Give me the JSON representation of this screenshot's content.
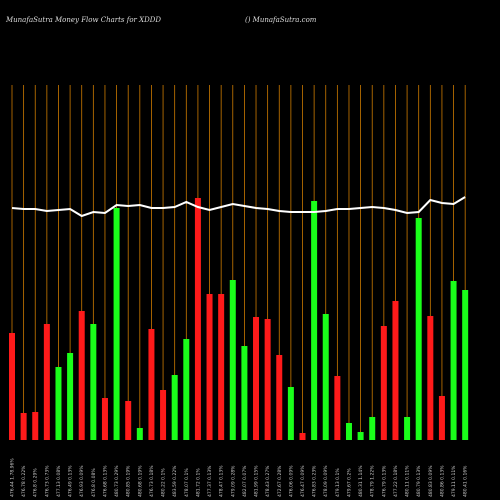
{
  "chart_data": {
    "type": "bar",
    "title": "MunafaSutra  Money Flow  Charts for XDDD",
    "subtitle": "() MunafaSutra.com",
    "categories": [
      "476.44 1.78.96%",
      "476.78 0.22%",
      "476.8 0.29%",
      "476.73 0.73%",
      "477.13 0.08%",
      "476.49 0.13%",
      "476.93 0.09%",
      "476.8 0.08%",
      "476.68 0.13%",
      "480.73 0.29%",
      "480.85 0.19%",
      "480.68 0.19%",
      "476.73 0.18%",
      "480.22 0.1%",
      "483.59 0.22%",
      "478.07 0.1%",
      "481.72 0.1%",
      "477.37 0.13%",
      "478.47 0.13%",
      "479.09 0.28%",
      "482.07 0.07%",
      "481.99 0.15%",
      "478.43 0.27%",
      "472.67 0.28%",
      "476.06 0.09%",
      "476.47 0.09%",
      "476.83 0.23%",
      "478.09 0.09%",
      "479.13 0.1%",
      "479.67 0.2%",
      "480.31 1.14%",
      "478.79 1.22%",
      "476.79 0.13%",
      "477.22 0.18%",
      "480.11 0.11%",
      "480.79 0.13%",
      "480.83 0.09%",
      "480.86 0.13%",
      "479.11 0.11%",
      "480.41 0.16%"
    ],
    "series": [
      {
        "name": "Money Flow",
        "values": [
          107,
          27,
          28,
          116,
          73,
          87,
          129,
          116,
          42,
          232,
          39,
          12,
          111,
          50,
          65,
          101,
          242,
          146,
          146,
          160,
          94,
          123,
          121,
          85,
          53,
          7,
          239,
          126,
          64,
          17,
          8,
          23,
          114,
          139,
          23,
          222,
          124,
          44,
          159,
          150
        ],
        "colors": [
          "#ff1a1a",
          "#ff1a1a",
          "#ff1a1a",
          "#ff1a1a",
          "#1aff1a",
          "#1aff1a",
          "#ff1a1a",
          "#1aff1a",
          "#ff1a1a",
          "#1aff1a",
          "#ff1a1a",
          "#1aff1a",
          "#ff1a1a",
          "#ff1a1a",
          "#1aff1a",
          "#1aff1a",
          "#ff1a1a",
          "#ff1a1a",
          "#ff1a1a",
          "#1aff1a",
          "#1aff1a",
          "#ff1a1a",
          "#ff1a1a",
          "#ff1a1a",
          "#1aff1a",
          "#ff1a1a",
          "#1aff1a",
          "#1aff1a",
          "#ff1a1a",
          "#1aff1a",
          "#1aff1a",
          "#1aff1a",
          "#ff1a1a",
          "#ff1a1a",
          "#1aff1a",
          "#1aff1a",
          "#ff1a1a",
          "#ff1a1a",
          "#1aff1a",
          "#1aff1a"
        ]
      },
      {
        "name": "Price",
        "type": "line",
        "color": "#ffffff",
        "values": [
          232,
          231,
          231,
          229,
          230,
          231,
          224,
          228,
          227,
          235,
          234,
          235,
          232,
          232,
          233,
          238,
          233,
          230,
          233,
          236,
          234,
          232,
          231,
          229,
          228,
          228,
          228,
          229,
          231,
          231,
          232,
          233,
          232,
          230,
          227,
          228,
          240,
          237,
          236,
          243
        ]
      }
    ],
    "ylim": [
      0,
      260
    ],
    "grid_color": "#cc7a00"
  }
}
